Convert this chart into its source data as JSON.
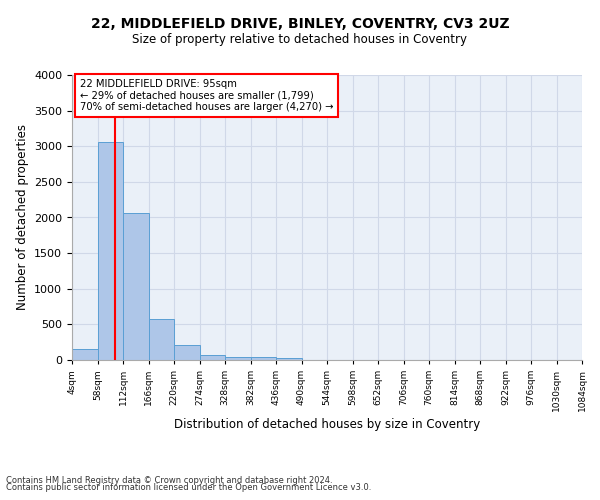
{
  "title1": "22, MIDDLEFIELD DRIVE, BINLEY, COVENTRY, CV3 2UZ",
  "title2": "Size of property relative to detached houses in Coventry",
  "xlabel": "Distribution of detached houses by size in Coventry",
  "ylabel": "Number of detached properties",
  "property_size": 95,
  "annotation_line1": "22 MIDDLEFIELD DRIVE: 95sqm",
  "annotation_line2": "← 29% of detached houses are smaller (1,799)",
  "annotation_line3": "70% of semi-detached houses are larger (4,270) →",
  "footer1": "Contains HM Land Registry data © Crown copyright and database right 2024.",
  "footer2": "Contains public sector information licensed under the Open Government Licence v3.0.",
  "bin_edges": [
    4,
    58,
    112,
    166,
    220,
    274,
    328,
    382,
    436,
    490,
    544,
    598,
    652,
    706,
    760,
    814,
    868,
    922,
    976,
    1030,
    1084
  ],
  "bar_heights": [
    150,
    3060,
    2060,
    570,
    210,
    75,
    45,
    40,
    35,
    0,
    0,
    0,
    0,
    0,
    0,
    0,
    0,
    0,
    0,
    0
  ],
  "bar_color": "#aec6e8",
  "bar_edge_color": "#5a9fd4",
  "vline_color": "red",
  "vline_x": 95,
  "annotation_box_color": "red",
  "ylim": [
    0,
    4000
  ],
  "grid_color": "#d0d8e8",
  "background_color": "#eaf0f8"
}
